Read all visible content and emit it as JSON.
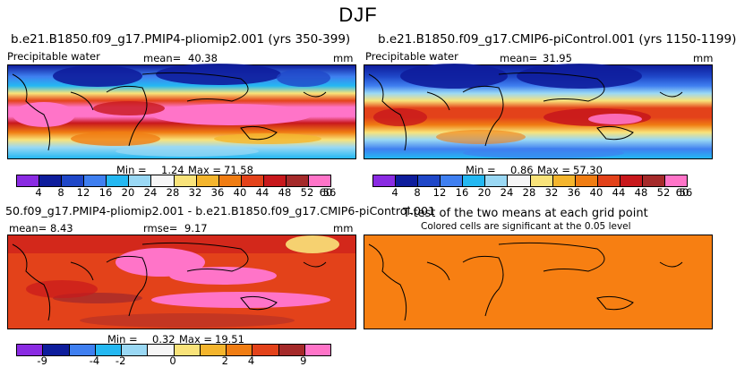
{
  "figure_title": "DJF",
  "panels": {
    "top_left": {
      "title": "b.e21.B1850.f09_g17.PMIP4-pliomip2.001 (yrs 350-399)",
      "variable": "Precipitable water",
      "mean_label": "mean=",
      "mean": "40.38",
      "units": "mm",
      "min_label": "Min =",
      "min": "1.24",
      "max_label": "Max =",
      "max": "71.58"
    },
    "top_right": {
      "title": "b.e21.B1850.f09_g17.CMIP6-piControl.001 (yrs 1150-1199)",
      "variable": "Precipitable water",
      "mean_label": "mean=",
      "mean": "31.95",
      "units": "mm",
      "min_label": "Min =",
      "min": "0.86",
      "max_label": "Max =",
      "max": "57.30"
    },
    "bottom_left": {
      "title": "50.f09_g17.PMIP4-pliomip2.001 - b.e21.B1850.f09_g17.CMIP6-piControl.001",
      "mean_label": "mean=",
      "mean": "8.43",
      "rmse_label": "rmse=",
      "rmse": "9.17",
      "units": "mm",
      "min_label": "Min =",
      "min": "0.32",
      "max_label": "Max =",
      "max": "19.51"
    },
    "bottom_right": {
      "title": "T-test of the two means at each grid point",
      "subtitle": "Colored cells are significant at the 0.05 level",
      "fill_color": "#f77f12"
    }
  },
  "colorbar_abs": {
    "colors": [
      "#8a2be2",
      "#0e1d9c",
      "#1f47c8",
      "#3f7ff0",
      "#24b8f2",
      "#9ad8f4",
      "#f6f6f6",
      "#f9e37a",
      "#f4b52d",
      "#f07d13",
      "#e3421a",
      "#c8181c",
      "#a52a2a",
      "#ff74c8"
    ],
    "ticks": [
      "4",
      "8",
      "12",
      "16",
      "20",
      "24",
      "28",
      "32",
      "36",
      "40",
      "44",
      "48",
      "52",
      "56",
      "60"
    ]
  },
  "colorbar_diff": {
    "colors": [
      "#8a2be2",
      "#0e1d9c",
      "#3f7ff0",
      "#24b8f2",
      "#9ad8f4",
      "#f6f6f6",
      "#f9e37a",
      "#f4b52d",
      "#f07d13",
      "#e3421a",
      "#a52a2a",
      "#ff74c8"
    ],
    "ticks": [
      "-9",
      "-4",
      "-2",
      "0",
      "2",
      "4",
      "9"
    ]
  }
}
